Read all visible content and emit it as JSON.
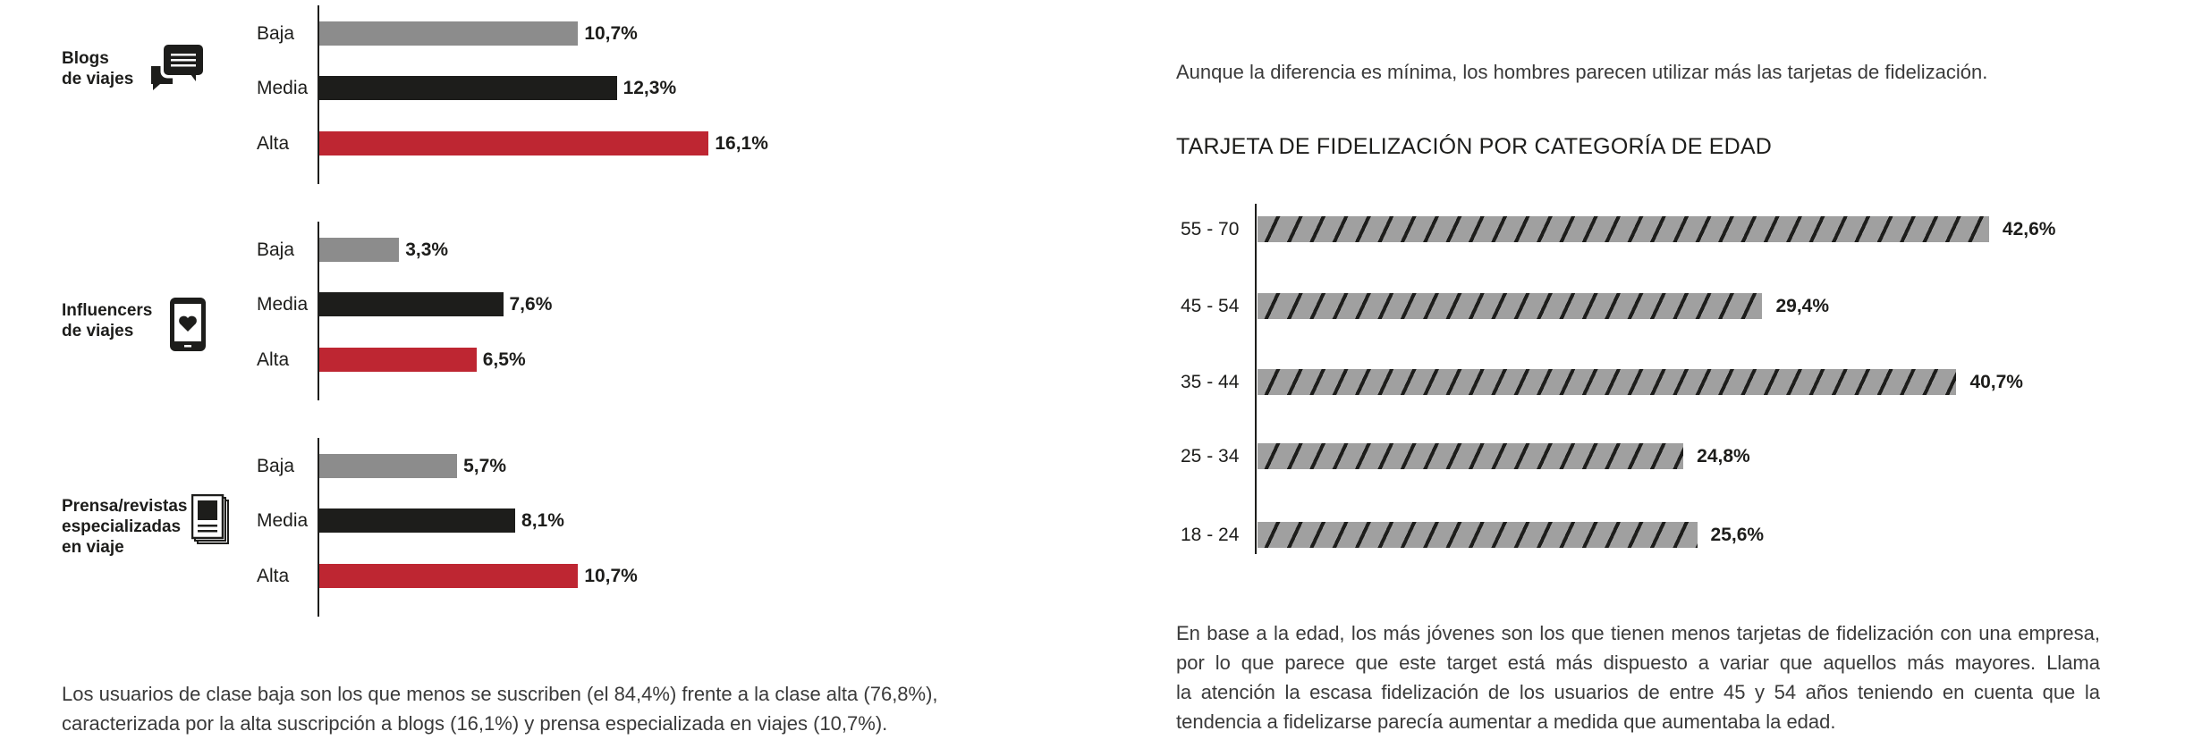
{
  "colors": {
    "baja": "#8c8c8c",
    "media": "#1d1d1b",
    "alta": "#be2632",
    "age_bar": "#a0a0a0"
  },
  "chart_data": [
    {
      "type": "bar",
      "orientation": "horizontal",
      "categories": [
        "Baja",
        "Media",
        "Alta"
      ],
      "groups": [
        {
          "label": "Blogs de viajes",
          "label_lines": [
            "Blogs",
            "de viajes"
          ],
          "icon": "chat-bubbles-icon",
          "values": [
            10.7,
            12.3,
            16.1
          ],
          "value_labels": [
            "10,7%",
            "12,3%",
            "16,1%"
          ]
        },
        {
          "label": "Influencers de viajes",
          "label_lines": [
            "Influencers",
            "de viajes"
          ],
          "icon": "smartphone-heart-icon",
          "values": [
            3.3,
            7.6,
            6.5
          ],
          "value_labels": [
            "3,3%",
            "7,6%",
            "6,5%"
          ]
        },
        {
          "label": "Prensa/revistas especializadas en viaje",
          "label_lines": [
            "Prensa/revistas",
            "especializadas",
            "en viaje"
          ],
          "icon": "newspaper-icon",
          "values": [
            5.7,
            8.1,
            10.7
          ],
          "value_labels": [
            "5,7%",
            "8,1%",
            "10,7%"
          ]
        }
      ],
      "xlim": [
        0,
        17
      ]
    },
    {
      "type": "bar",
      "orientation": "horizontal",
      "title": "TARJETA DE FIDELIZACIÓN POR CATEGORÍA DE EDAD",
      "categories": [
        "55 - 70",
        "45 - 54",
        "35 - 44",
        "25 - 34",
        "18 - 24"
      ],
      "values": [
        42.6,
        29.4,
        40.7,
        24.8,
        25.6
      ],
      "value_labels": [
        "42,6%",
        "29,4%",
        "40,7%",
        "24,8%",
        "25,6%"
      ],
      "xlim": [
        0,
        45
      ]
    }
  ],
  "left": {
    "paragraph_lines": [
      "Los usuarios de clase baja son los que menos se suscriben (el 84,4%) frente a la clase alta (76,8%),",
      "caracterizada por la alta suscripción a blogs (16,1%) y prensa especializada en viajes (10,7%)."
    ]
  },
  "right": {
    "intro": "Aunque la diferencia es mínima, los hombres parecen utilizar más las tarjetas de fidelización.",
    "paragraph_lines": [
      "En base a la edad, los más jóvenes son los que tienen menos tarjetas de fidelización con una empresa,",
      "por lo que parece que este target está más dispuesto a variar que aquellos más mayores. Llama",
      "la atención la escasa fidelización de los usuarios de entre 45 y 54 años teniendo en cuenta que la",
      "tendencia a fidelizarse parecía aumentar a medida que aumentaba la edad."
    ]
  }
}
